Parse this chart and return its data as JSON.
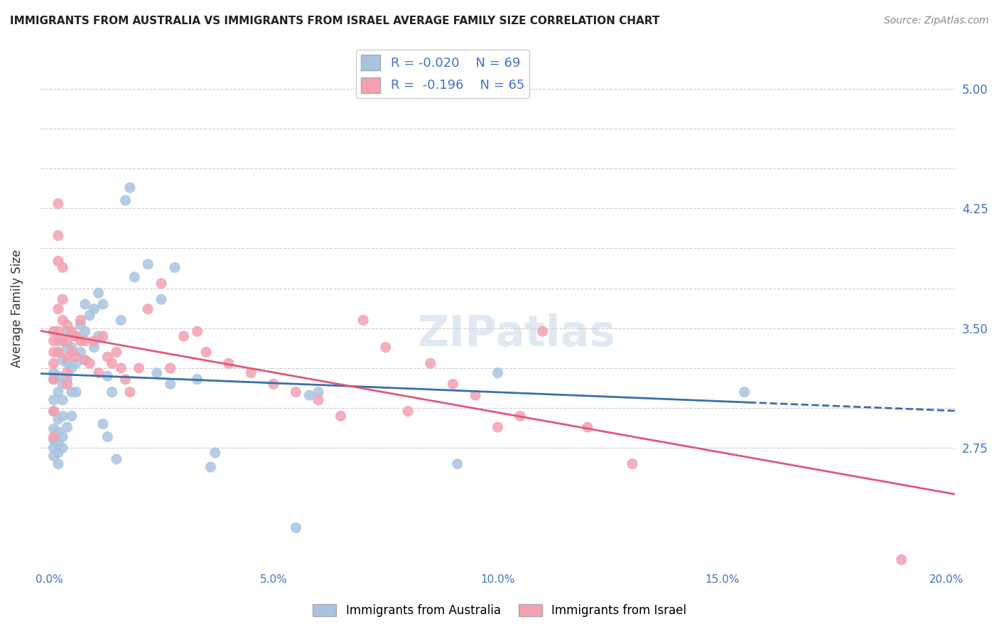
{
  "title": "IMMIGRANTS FROM AUSTRALIA VS IMMIGRANTS FROM ISRAEL AVERAGE FAMILY SIZE CORRELATION CHART",
  "source": "Source: ZipAtlas.com",
  "ylabel": "Average Family Size",
  "xlabel_ticks": [
    "0.0%",
    "5.0%",
    "10.0%",
    "15.0%",
    "20.0%"
  ],
  "xlabel_vals": [
    0.0,
    0.05,
    0.1,
    0.15,
    0.2
  ],
  "ylim": [
    2.0,
    5.25
  ],
  "xlim": [
    -0.002,
    0.202
  ],
  "yticks": [
    2.75,
    3.0,
    3.25,
    3.5,
    3.75,
    4.0,
    4.25,
    4.5,
    4.75,
    5.0
  ],
  "right_yticks": [
    2.75,
    3.5,
    4.25,
    5.0
  ],
  "legend_r_australia": "-0.020",
  "legend_n_australia": "69",
  "legend_r_israel": "-0.196",
  "legend_n_israel": "65",
  "color_australia": "#a8c4e0",
  "color_israel": "#f4a0b0",
  "color_line_australia": "#3a6fa8",
  "color_line_israel": "#e05878",
  "color_axis": "#4472c4",
  "color_title": "#222222",
  "color_source": "#888888",
  "watermark": "ZIPatlas",
  "australia_x": [
    0.001,
    0.001,
    0.001,
    0.001,
    0.001,
    0.001,
    0.001,
    0.001,
    0.002,
    0.002,
    0.002,
    0.002,
    0.002,
    0.002,
    0.002,
    0.002,
    0.002,
    0.003,
    0.003,
    0.003,
    0.003,
    0.003,
    0.003,
    0.004,
    0.004,
    0.004,
    0.004,
    0.004,
    0.005,
    0.005,
    0.005,
    0.005,
    0.006,
    0.006,
    0.006,
    0.007,
    0.007,
    0.008,
    0.008,
    0.008,
    0.009,
    0.01,
    0.01,
    0.011,
    0.011,
    0.012,
    0.012,
    0.013,
    0.013,
    0.014,
    0.015,
    0.016,
    0.017,
    0.018,
    0.019,
    0.022,
    0.024,
    0.025,
    0.027,
    0.028,
    0.033,
    0.036,
    0.037,
    0.055,
    0.058,
    0.06,
    0.091,
    0.1,
    0.155
  ],
  "australia_y": [
    3.22,
    3.18,
    3.05,
    2.98,
    2.87,
    2.8,
    2.75,
    2.7,
    3.42,
    3.35,
    3.2,
    3.1,
    2.93,
    2.85,
    2.78,
    2.72,
    2.65,
    3.3,
    3.15,
    3.05,
    2.95,
    2.82,
    2.75,
    3.48,
    3.38,
    3.28,
    3.18,
    2.88,
    3.38,
    3.25,
    3.1,
    2.95,
    3.45,
    3.28,
    3.1,
    3.52,
    3.35,
    3.65,
    3.48,
    3.3,
    3.58,
    3.62,
    3.38,
    3.72,
    3.45,
    3.65,
    2.9,
    3.2,
    2.82,
    3.1,
    2.68,
    3.55,
    4.3,
    4.38,
    3.82,
    3.9,
    3.22,
    3.68,
    3.15,
    3.88,
    3.18,
    2.63,
    2.72,
    2.25,
    3.08,
    3.1,
    2.65,
    3.22,
    3.1
  ],
  "israel_x": [
    0.001,
    0.001,
    0.001,
    0.001,
    0.001,
    0.001,
    0.001,
    0.002,
    0.002,
    0.002,
    0.002,
    0.002,
    0.002,
    0.003,
    0.003,
    0.003,
    0.003,
    0.004,
    0.004,
    0.004,
    0.004,
    0.004,
    0.005,
    0.005,
    0.006,
    0.006,
    0.007,
    0.007,
    0.008,
    0.008,
    0.009,
    0.01,
    0.011,
    0.012,
    0.013,
    0.014,
    0.015,
    0.016,
    0.017,
    0.018,
    0.02,
    0.022,
    0.025,
    0.027,
    0.03,
    0.033,
    0.035,
    0.04,
    0.045,
    0.05,
    0.055,
    0.06,
    0.065,
    0.07,
    0.075,
    0.08,
    0.085,
    0.09,
    0.095,
    0.1,
    0.105,
    0.11,
    0.12,
    0.13,
    0.19
  ],
  "israel_y": [
    3.48,
    3.42,
    3.35,
    3.28,
    3.18,
    2.98,
    2.82,
    4.28,
    4.08,
    3.92,
    3.62,
    3.48,
    3.35,
    3.88,
    3.68,
    3.55,
    3.42,
    3.52,
    3.42,
    3.32,
    3.22,
    3.15,
    3.48,
    3.35,
    3.45,
    3.32,
    3.55,
    3.42,
    3.42,
    3.3,
    3.28,
    3.42,
    3.22,
    3.45,
    3.32,
    3.28,
    3.35,
    3.25,
    3.18,
    3.1,
    3.25,
    3.62,
    3.78,
    3.25,
    3.45,
    3.48,
    3.35,
    3.28,
    3.22,
    3.15,
    3.1,
    3.05,
    2.95,
    3.55,
    3.38,
    2.98,
    3.28,
    3.15,
    3.08,
    2.88,
    2.95,
    3.48,
    2.88,
    2.65,
    2.05
  ]
}
